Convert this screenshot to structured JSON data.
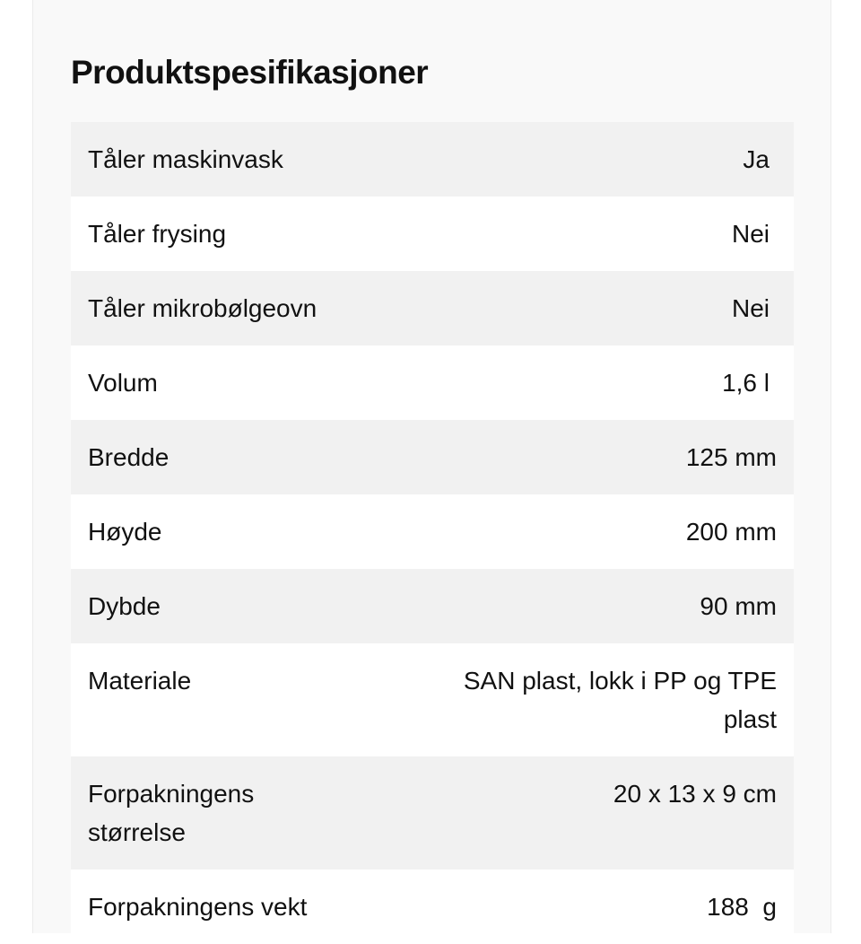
{
  "title": "Produktspesifikasjoner",
  "specs": [
    {
      "label": "Tåler maskinvask",
      "value": "Ja"
    },
    {
      "label": "Tåler frysing",
      "value": "Nei"
    },
    {
      "label": "Tåler mikrobølgeovn",
      "value": "Nei"
    },
    {
      "label": "Volum",
      "value": "1,6 l"
    },
    {
      "label": "Bredde",
      "value": "125 mm"
    },
    {
      "label": "Høyde",
      "value": "200 mm"
    },
    {
      "label": "Dybde",
      "value": "90 mm"
    },
    {
      "label": "Materiale",
      "value": "SAN plast, lokk i PP og TPE plast"
    },
    {
      "label": "Forpakningens størrelse",
      "value": "20 x 13 x 9 cm"
    },
    {
      "label": "Forpakningens vekt",
      "value": "188  g"
    }
  ]
}
